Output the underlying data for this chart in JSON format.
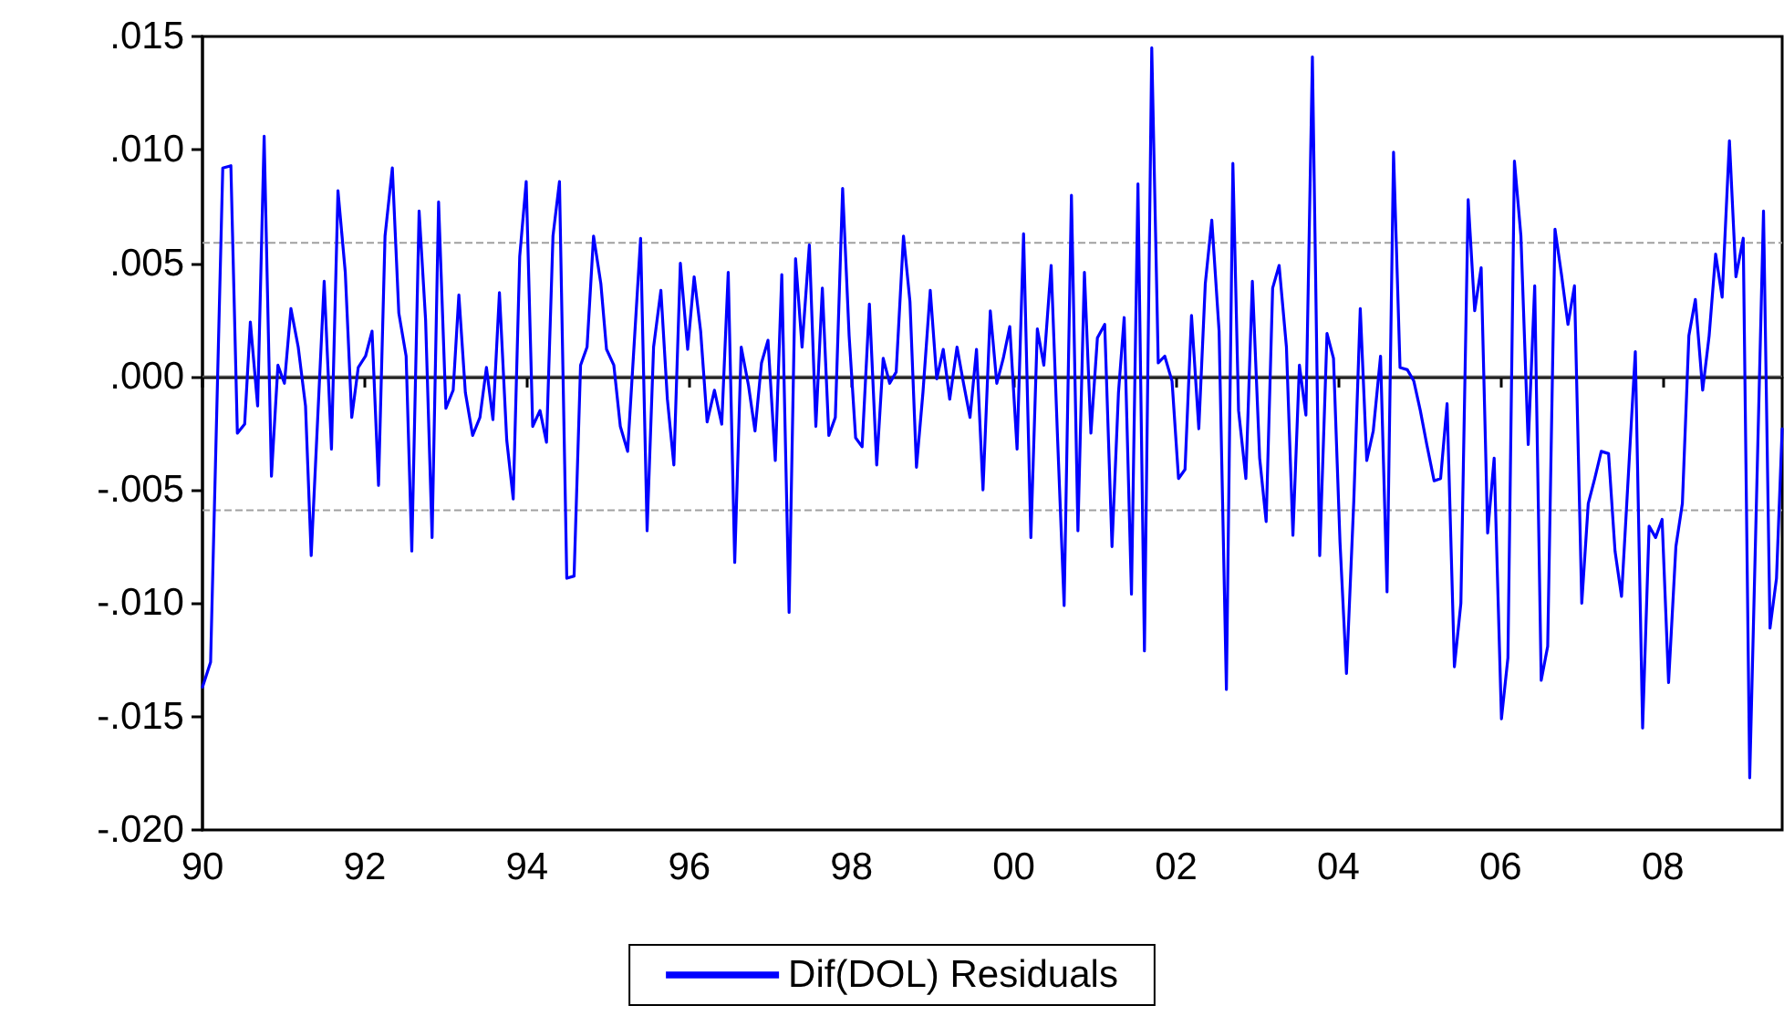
{
  "chart_data": {
    "type": "line",
    "marker": "none",
    "line_style": "solid",
    "grid": false,
    "legend": "bottom",
    "xlim": [
      1990,
      2009.47
    ],
    "ylim": [
      -0.02,
      0.015
    ],
    "xticks": [
      {
        "value": 1990,
        "label": "90"
      },
      {
        "value": 1992,
        "label": "92"
      },
      {
        "value": 1994,
        "label": "94"
      },
      {
        "value": 1996,
        "label": "96"
      },
      {
        "value": 1998,
        "label": "98"
      },
      {
        "value": 2000,
        "label": "00"
      },
      {
        "value": 2002,
        "label": "02"
      },
      {
        "value": 2004,
        "label": "04"
      },
      {
        "value": 2006,
        "label": "06"
      },
      {
        "value": 2008,
        "label": "08"
      }
    ],
    "yticks": [
      {
        "value": -0.02,
        "label": "-.020"
      },
      {
        "value": -0.015,
        "label": "-.015"
      },
      {
        "value": -0.01,
        "label": "-.010"
      },
      {
        "value": -0.005,
        "label": "-.005"
      },
      {
        "value": 0,
        "label": ".000"
      },
      {
        "value": 0.005,
        "label": ".005"
      },
      {
        "value": 0.01,
        "label": ".010"
      },
      {
        "value": 0.015,
        "label": ".015"
      }
    ],
    "ref_lines": [
      {
        "axis": "y",
        "value": 0,
        "color": "#555555",
        "line_style": "solid"
      },
      {
        "axis": "y",
        "value": 0.0059,
        "color": "#a0a0a0",
        "line_style": "dashed"
      },
      {
        "axis": "y",
        "value": -0.0059,
        "color": "#a0a0a0",
        "line_style": "dashed"
      }
    ],
    "series": [
      {
        "name": "Dif(DOL) Residuals",
        "color": "#0000ff",
        "x": [
          1990.0,
          1990.1,
          1990.25,
          1990.35,
          1990.43,
          1990.52,
          1990.59,
          1990.68,
          1990.76,
          1990.85,
          1990.93,
          1991.01,
          1991.09,
          1991.18,
          1991.27,
          1991.34,
          1991.5,
          1991.59,
          1991.67,
          1991.76,
          1991.84,
          1991.92,
          1992.01,
          1992.09,
          1992.17,
          1992.25,
          1992.34,
          1992.42,
          1992.51,
          1992.58,
          1992.67,
          1992.75,
          1992.83,
          1992.91,
          1993.0,
          1993.09,
          1993.16,
          1993.24,
          1993.33,
          1993.42,
          1993.5,
          1993.58,
          1993.66,
          1993.75,
          1993.83,
          1993.91,
          1993.99,
          1994.07,
          1994.16,
          1994.24,
          1994.32,
          1994.4,
          1994.49,
          1994.58,
          1994.66,
          1994.74,
          1994.82,
          1994.91,
          1994.98,
          1995.07,
          1995.15,
          1995.24,
          1995.4,
          1995.48,
          1995.56,
          1995.65,
          1995.73,
          1995.81,
          1995.89,
          1995.98,
          1996.06,
          1996.14,
          1996.22,
          1996.31,
          1996.4,
          1996.48,
          1996.56,
          1996.64,
          1996.73,
          1996.81,
          1996.89,
          1996.97,
          1997.06,
          1997.14,
          1997.23,
          1997.31,
          1997.39,
          1997.48,
          1997.56,
          1997.64,
          1997.72,
          1997.8,
          1997.89,
          1997.97,
          1998.05,
          1998.13,
          1998.22,
          1998.31,
          1998.39,
          1998.47,
          1998.55,
          1998.64,
          1998.72,
          1998.8,
          1998.88,
          1998.97,
          1999.05,
          1999.13,
          1999.21,
          1999.3,
          1999.38,
          1999.46,
          1999.54,
          1999.62,
          1999.71,
          1999.79,
          1999.87,
          1999.95,
          2000.04,
          2000.12,
          2000.21,
          2000.29,
          2000.37,
          2000.46,
          2000.54,
          2000.62,
          2000.71,
          2000.79,
          2000.87,
          2000.95,
          2001.03,
          2001.12,
          2001.21,
          2001.29,
          2001.36,
          2001.45,
          2001.53,
          2001.61,
          2001.7,
          2001.78,
          2001.86,
          2001.95,
          2002.03,
          2002.11,
          2002.19,
          2002.28,
          2002.36,
          2002.44,
          2002.53,
          2002.62,
          2002.7,
          2002.77,
          2002.86,
          2002.94,
          2003.03,
          2003.11,
          2003.19,
          2003.27,
          2003.36,
          2003.44,
          2003.52,
          2003.6,
          2003.68,
          2003.77,
          2003.86,
          2003.94,
          2004.02,
          2004.1,
          2004.19,
          2004.27,
          2004.35,
          2004.43,
          2004.52,
          2004.6,
          2004.68,
          2004.76,
          2004.85,
          2004.93,
          2005.01,
          2005.09,
          2005.18,
          2005.26,
          2005.34,
          2005.43,
          2005.51,
          2005.6,
          2005.68,
          2005.76,
          2005.84,
          2005.92,
          2006.01,
          2006.09,
          2006.17,
          2006.25,
          2006.34,
          2006.42,
          2006.5,
          2006.58,
          2006.67,
          2006.75,
          2006.83,
          2006.91,
          2007.0,
          2007.08,
          2007.16,
          2007.24,
          2007.33,
          2007.41,
          2007.49,
          2007.66,
          2007.75,
          2007.83,
          2007.91,
          2007.99,
          2008.07,
          2008.16,
          2008.24,
          2008.32,
          2008.4,
          2008.49,
          2008.57,
          2008.65,
          2008.73,
          2008.82,
          2008.9,
          2008.99,
          2009.07,
          2009.24,
          2009.32,
          2009.4,
          2009.47
        ],
        "values": [
          -0.0137,
          -0.0126,
          0.0092,
          0.0093,
          -0.0025,
          -0.0021,
          0.0024,
          -0.0013,
          0.0106,
          -0.0044,
          0.0005,
          -0.0003,
          0.003,
          0.0013,
          -0.0013,
          -0.0079,
          0.0042,
          -0.0032,
          0.0082,
          0.0046,
          -0.0018,
          0.0004,
          0.0009,
          0.002,
          -0.0048,
          0.0062,
          0.0092,
          0.0028,
          0.0009,
          -0.0077,
          0.0073,
          0.0025,
          -0.0071,
          0.0077,
          -0.0014,
          -0.0006,
          0.0036,
          -0.0007,
          -0.0026,
          -0.0018,
          0.0004,
          -0.0019,
          0.0037,
          -0.0028,
          -0.0054,
          0.0053,
          0.0086,
          -0.0022,
          -0.0015,
          -0.0029,
          0.0062,
          0.0086,
          -0.0089,
          -0.0088,
          0.0005,
          0.0013,
          0.0062,
          0.0041,
          0.0012,
          0.0005,
          -0.0022,
          -0.0033,
          0.0061,
          -0.0068,
          0.0013,
          0.0038,
          -0.001,
          -0.0039,
          0.005,
          0.0012,
          0.0044,
          0.002,
          -0.002,
          -0.0006,
          -0.0021,
          0.0046,
          -0.0082,
          0.0013,
          -0.0004,
          -0.0024,
          0.0006,
          0.0016,
          -0.0037,
          0.0045,
          -0.0104,
          0.0052,
          0.0013,
          0.0058,
          -0.0022,
          0.0039,
          -0.0026,
          -0.0018,
          0.0083,
          0.0018,
          -0.0027,
          -0.0031,
          0.0032,
          -0.0039,
          0.0008,
          -0.0003,
          0.0002,
          0.0062,
          0.0033,
          -0.004,
          -0.0007,
          0.0038,
          -0.0001,
          0.0012,
          -0.001,
          0.0013,
          -0.0003,
          -0.0018,
          0.0012,
          -0.005,
          0.0029,
          -0.0003,
          0.0008,
          0.0022,
          -0.0032,
          0.0063,
          -0.0071,
          0.0021,
          0.0005,
          0.0049,
          -0.0028,
          -0.0101,
          0.008,
          -0.0068,
          0.0046,
          -0.0025,
          0.0017,
          0.0023,
          -0.0075,
          -0.0007,
          0.0026,
          -0.0096,
          0.0085,
          -0.0121,
          0.0145,
          0.0006,
          0.0009,
          -0.0002,
          -0.0045,
          -0.0041,
          0.0027,
          -0.0023,
          0.0041,
          0.0069,
          0.002,
          -0.0138,
          0.0094,
          -0.0015,
          -0.0045,
          0.0042,
          -0.0036,
          -0.0064,
          0.0039,
          0.0049,
          0.0013,
          -0.007,
          0.0005,
          -0.0017,
          0.0141,
          -0.0079,
          0.0019,
          0.0008,
          -0.0073,
          -0.0131,
          -0.0055,
          0.003,
          -0.0037,
          -0.0024,
          0.0009,
          -0.0095,
          0.0099,
          0.0004,
          0.0003,
          -0.0002,
          -0.0015,
          -0.003,
          -0.0046,
          -0.0045,
          -0.0012,
          -0.0128,
          -0.01,
          0.0078,
          0.0029,
          0.0048,
          -0.0069,
          -0.0036,
          -0.0151,
          -0.0124,
          0.0095,
          0.0062,
          -0.003,
          0.004,
          -0.0134,
          -0.0119,
          0.0065,
          0.0045,
          0.0023,
          0.004,
          -0.01,
          -0.0056,
          -0.0045,
          -0.0033,
          -0.0034,
          -0.0077,
          -0.0097,
          0.0011,
          -0.0155,
          -0.0066,
          -0.0071,
          -0.0063,
          -0.0135,
          -0.0075,
          -0.0056,
          0.0018,
          0.0034,
          -0.0006,
          0.0018,
          0.0054,
          0.0035,
          0.0104,
          0.0044,
          0.0061,
          -0.0177,
          0.0073,
          -0.0111,
          -0.0089,
          -0.0023
        ]
      }
    ]
  }
}
